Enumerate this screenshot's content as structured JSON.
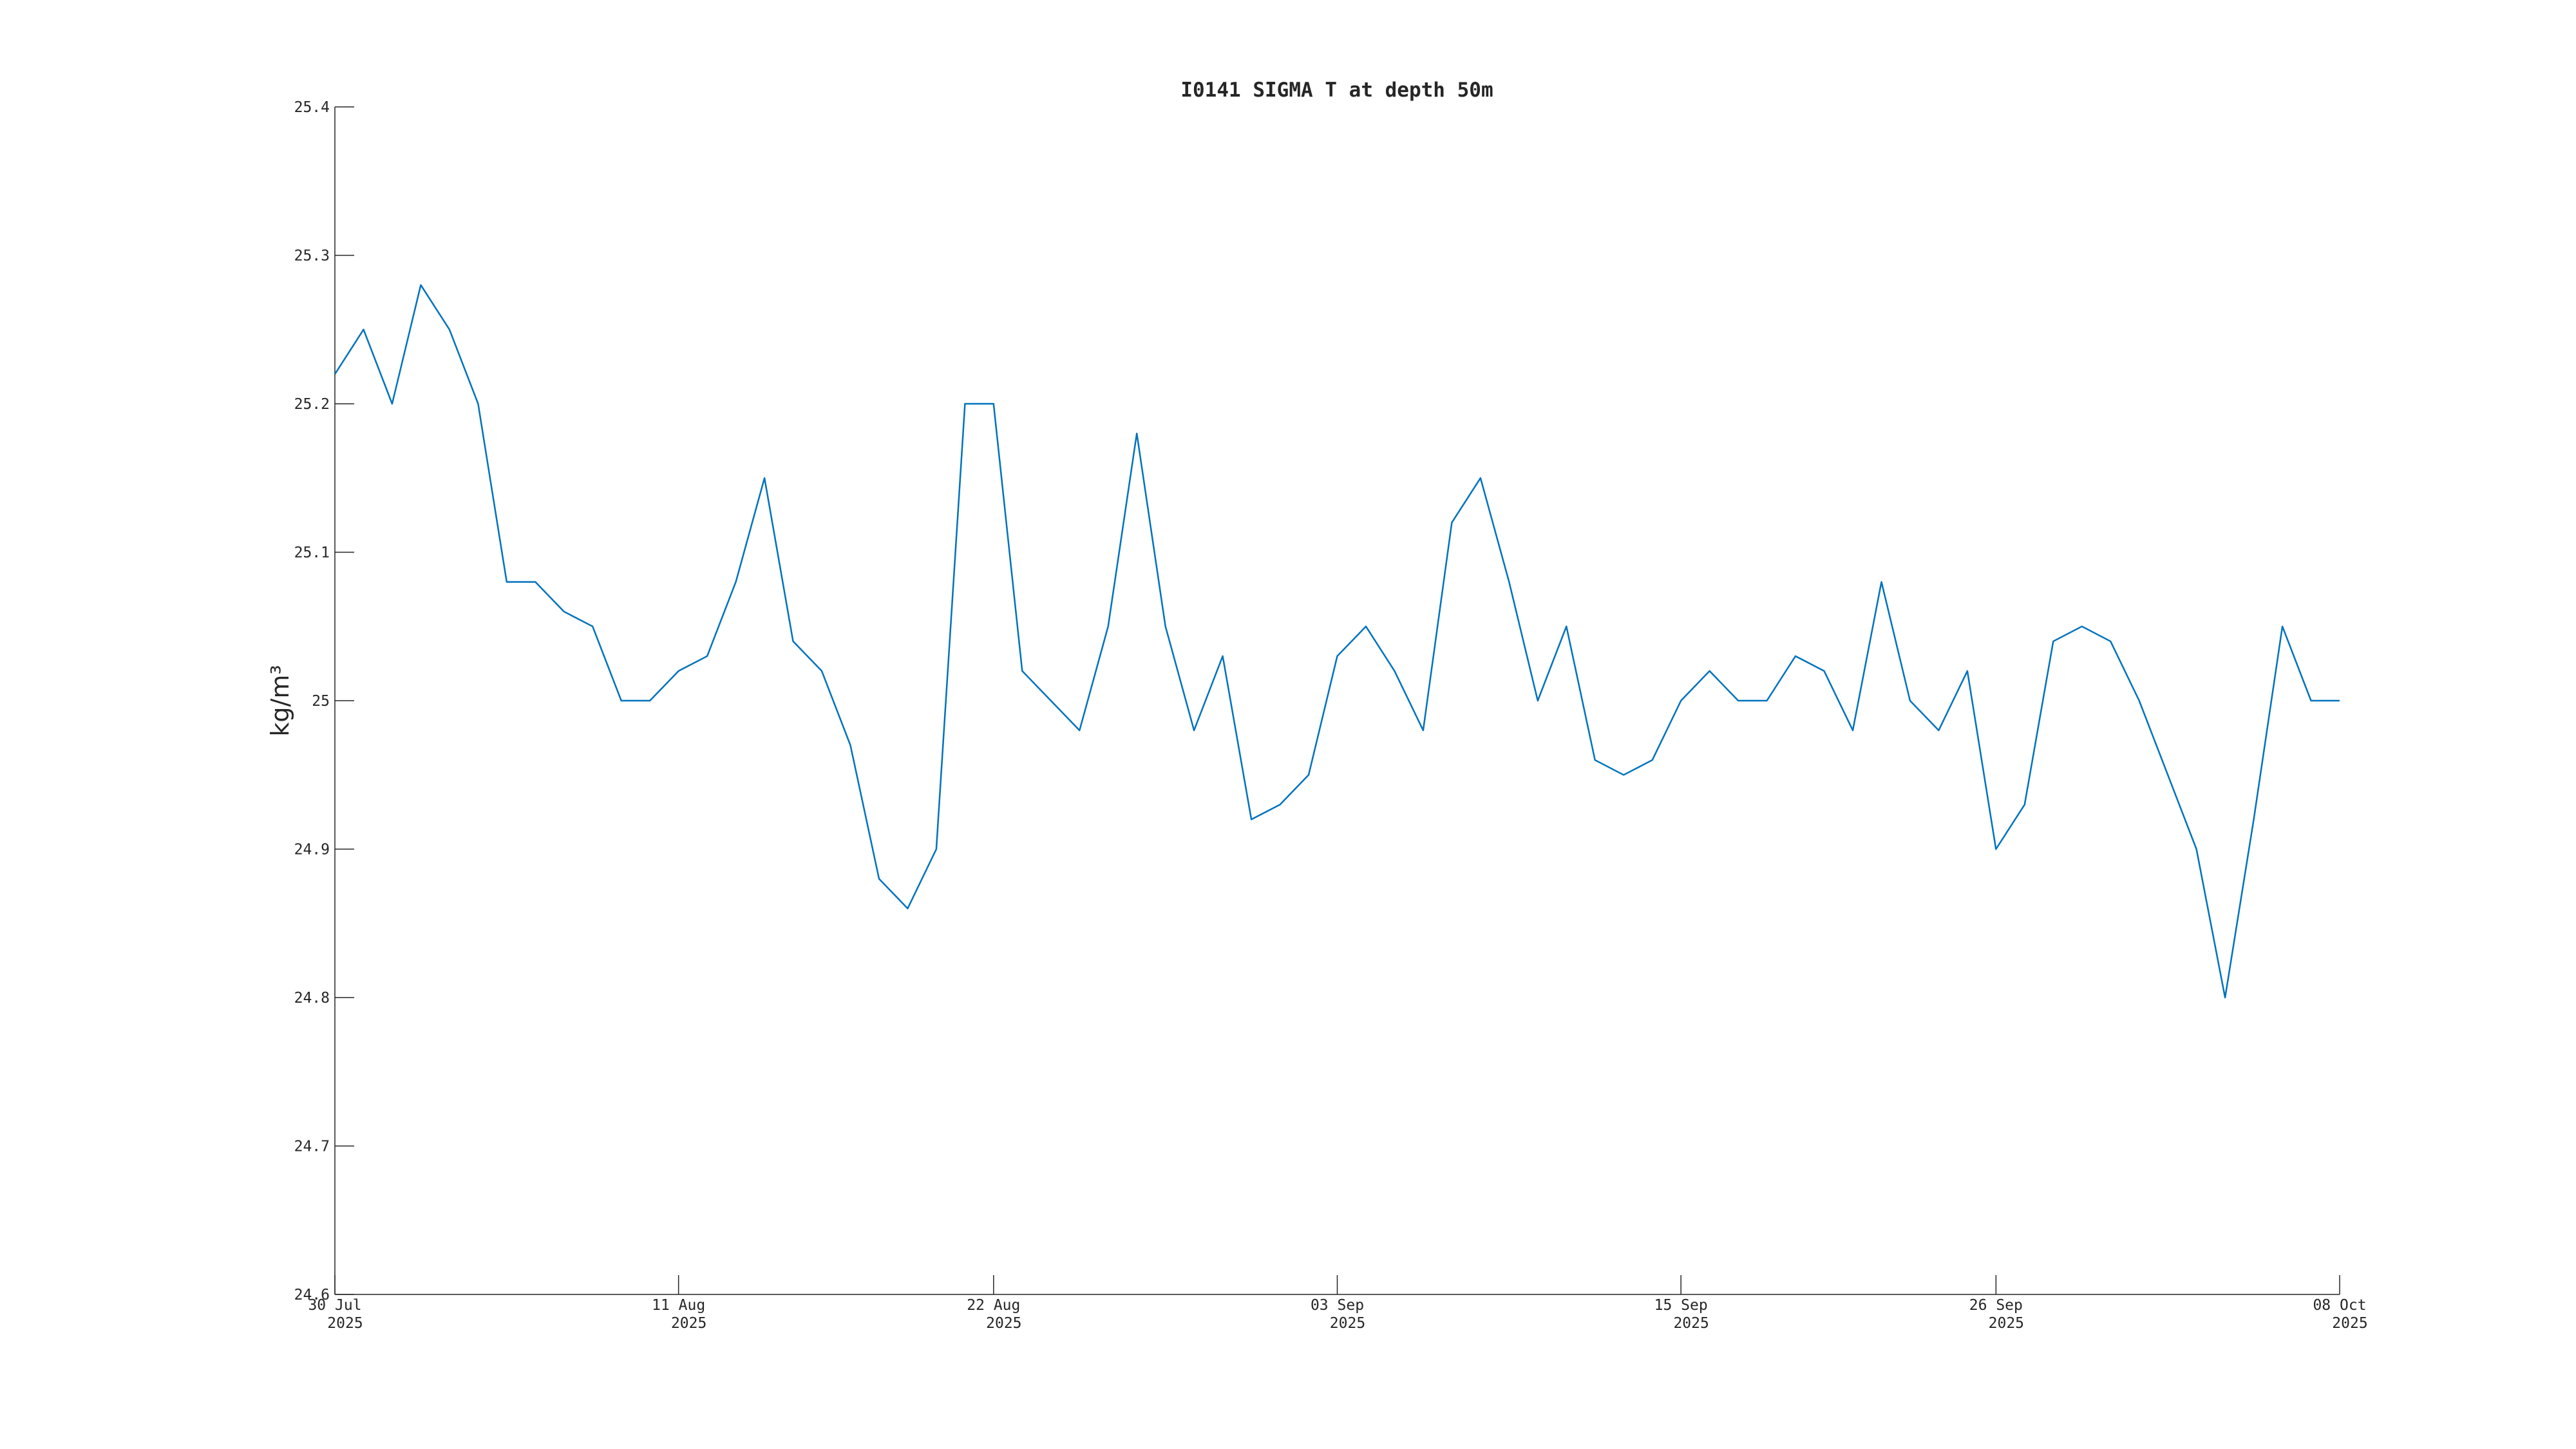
{
  "chart_data": {
    "type": "line",
    "title": "I0141 SIGMA T at depth 50m",
    "ylabel": "kg/m³",
    "x": [
      "2025-07-30",
      "2025-07-31",
      "2025-08-01",
      "2025-08-02",
      "2025-08-03",
      "2025-08-04",
      "2025-08-05",
      "2025-08-06",
      "2025-08-07",
      "2025-08-08",
      "2025-08-09",
      "2025-08-10",
      "2025-08-11",
      "2025-08-12",
      "2025-08-13",
      "2025-08-14",
      "2025-08-15",
      "2025-08-16",
      "2025-08-17",
      "2025-08-18",
      "2025-08-19",
      "2025-08-20",
      "2025-08-21",
      "2025-08-22",
      "2025-08-23",
      "2025-08-24",
      "2025-08-25",
      "2025-08-26",
      "2025-08-27",
      "2025-08-28",
      "2025-08-29",
      "2025-08-30",
      "2025-08-31",
      "2025-09-01",
      "2025-09-02",
      "2025-09-03",
      "2025-09-04",
      "2025-09-05",
      "2025-09-06",
      "2025-09-07",
      "2025-09-08",
      "2025-09-09",
      "2025-09-10",
      "2025-09-11",
      "2025-09-12",
      "2025-09-13",
      "2025-09-14",
      "2025-09-15",
      "2025-09-16",
      "2025-09-17",
      "2025-09-18",
      "2025-09-19",
      "2025-09-20",
      "2025-09-21",
      "2025-09-22",
      "2025-09-23",
      "2025-09-24",
      "2025-09-25",
      "2025-09-26",
      "2025-09-27",
      "2025-09-28",
      "2025-09-29",
      "2025-09-30",
      "2025-10-01",
      "2025-10-02",
      "2025-10-03",
      "2025-10-04",
      "2025-10-05",
      "2025-10-06",
      "2025-10-07",
      "2025-10-08"
    ],
    "series": [
      {
        "color": "#0072bd",
        "values": [
          25.22,
          25.25,
          25.2,
          25.28,
          25.25,
          25.2,
          25.08,
          25.08,
          25.06,
          25.05,
          25.0,
          25.0,
          25.02,
          25.03,
          25.08,
          25.15,
          25.04,
          25.02,
          24.97,
          24.88,
          24.86,
          24.9,
          25.2,
          25.2,
          25.02,
          25.0,
          24.98,
          25.05,
          25.18,
          25.05,
          24.98,
          25.03,
          24.92,
          24.93,
          24.95,
          25.03,
          25.05,
          25.02,
          24.98,
          25.12,
          25.15,
          25.08,
          25.0,
          25.05,
          24.96,
          24.95,
          24.96,
          25.0,
          25.02,
          25.0,
          25.0,
          25.03,
          25.02,
          24.98,
          25.08,
          25.0,
          24.98,
          25.02,
          24.9,
          24.93,
          25.04,
          25.05,
          25.04,
          25.0,
          24.95,
          24.9,
          24.8,
          24.92,
          25.05,
          25.0,
          25.0
        ]
      }
    ],
    "xlim": [
      "2025-07-30",
      "2025-10-08"
    ],
    "xticks": [
      {
        "value": "2025-07-30",
        "label": [
          "30 Jul",
          "2025"
        ]
      },
      {
        "value": "2025-08-11",
        "label": [
          "11 Aug",
          "2025"
        ]
      },
      {
        "value": "2025-08-22",
        "label": [
          "22 Aug",
          "2025"
        ]
      },
      {
        "value": "2025-09-03",
        "label": [
          "03 Sep",
          "2025"
        ]
      },
      {
        "value": "2025-09-15",
        "label": [
          "15 Sep",
          "2025"
        ]
      },
      {
        "value": "2025-09-26",
        "label": [
          "26 Sep",
          "2025"
        ]
      },
      {
        "value": "2025-10-08",
        "label": [
          "08 Oct",
          "2025"
        ]
      }
    ],
    "ylim": [
      24.6,
      25.4
    ],
    "yticks": [
      24.6,
      24.7,
      24.8,
      24.9,
      25,
      25.1,
      25.2,
      25.3,
      25.4
    ]
  }
}
